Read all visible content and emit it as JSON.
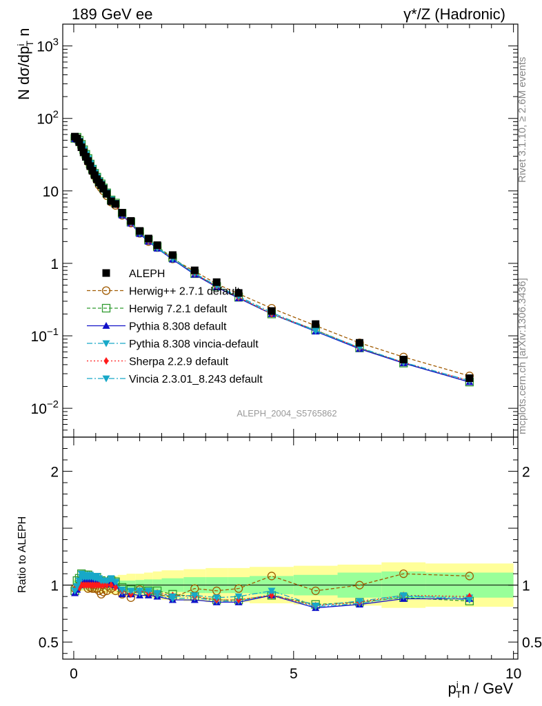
{
  "header": {
    "left_title": "189 GeV ee",
    "right_title": "γ*/Z (Hadronic)"
  },
  "side_labels": {
    "rivet": "Rivet 3.1.10, ≥ 2.6M events",
    "mcplots": "mcplots.cern.ch [arXiv:1306.3436]"
  },
  "watermark": "ALEPH_2004_S5765862",
  "chart_data": [
    {
      "type": "line",
      "panel": "main",
      "ylabel": "N dσ/dp_T^i n",
      "yscale": "log",
      "ylim": [
        0.004,
        2000
      ],
      "xlim": [
        -0.25,
        10.1
      ],
      "y_tick_labels": [
        "10^-2",
        "10^-1",
        "1",
        "10",
        "10^2",
        "10^3"
      ],
      "x": [
        0.025,
        0.075,
        0.125,
        0.175,
        0.225,
        0.275,
        0.325,
        0.375,
        0.425,
        0.475,
        0.525,
        0.575,
        0.625,
        0.675,
        0.75,
        0.85,
        0.95,
        1.1,
        1.3,
        1.5,
        1.7,
        1.9,
        2.25,
        2.75,
        3.25,
        3.75,
        4.5,
        5.5,
        6.5,
        7.5,
        9.0
      ],
      "series": [
        {
          "name": "ALEPH",
          "color": "#000000",
          "marker": "square-filled",
          "values": [
            56,
            53,
            47,
            40,
            34,
            29.5,
            25.8,
            22,
            19,
            16.5,
            14.5,
            13,
            12,
            10.7,
            9.1,
            7.2,
            6.6,
            5.0,
            3.85,
            2.8,
            2.2,
            1.78,
            1.3,
            0.8,
            0.55,
            0.39,
            0.22,
            0.145,
            0.08,
            0.047,
            0.026
          ]
        },
        {
          "name": "Herwig++ 2.7.1 default",
          "color": "#a05a00",
          "marker": "circle-open",
          "dash": "5,3",
          "values": [
            54,
            51,
            47,
            41,
            35,
            30,
            25,
            21.5,
            18.5,
            16,
            14,
            12,
            11,
            10,
            8.6,
            7.0,
            6.3,
            4.6,
            3.6,
            2.6,
            2.0,
            1.65,
            1.15,
            0.78,
            0.52,
            0.38,
            0.24,
            0.138,
            0.08,
            0.051,
            0.028
          ]
        },
        {
          "name": "Herwig 7.2.1 default",
          "color": "#2e9a2e",
          "marker": "square-open",
          "dash": "5,3",
          "values": [
            53,
            55,
            50,
            44,
            37,
            32,
            28,
            23.5,
            20,
            17.5,
            15.5,
            13.5,
            12.5,
            11,
            9.4,
            7.5,
            6.8,
            4.9,
            3.7,
            2.7,
            2.1,
            1.7,
            1.2,
            0.72,
            0.48,
            0.34,
            0.2,
            0.12,
            0.068,
            0.042,
            0.023
          ]
        },
        {
          "name": "Pythia 8.308 default",
          "color": "#1010c8",
          "marker": "triangle-up",
          "dash": "",
          "values": [
            52,
            51,
            47,
            42,
            36,
            31,
            27,
            23,
            20,
            17.3,
            15.2,
            13.5,
            12.2,
            10.8,
            9.2,
            7.4,
            6.6,
            4.6,
            3.55,
            2.55,
            2.0,
            1.6,
            1.13,
            0.7,
            0.47,
            0.33,
            0.2,
            0.115,
            0.066,
            0.042,
            0.023
          ]
        },
        {
          "name": "Pythia 8.308 vincia-default",
          "color": "#17a8c8",
          "marker": "triangle-down",
          "dash": "8,3,2,3",
          "values": [
            53,
            52,
            48,
            43,
            36.5,
            31.5,
            27.5,
            23.5,
            20.3,
            17.5,
            15.4,
            13.6,
            12.3,
            10.9,
            9.3,
            7.5,
            6.7,
            4.7,
            3.6,
            2.6,
            2.05,
            1.62,
            1.15,
            0.72,
            0.48,
            0.34,
            0.2,
            0.117,
            0.068,
            0.043,
            0.024
          ]
        },
        {
          "name": "Sherpa 2.2.9 default",
          "color": "#ff1a1a",
          "marker": "diamond",
          "dash": "2,3",
          "values": [
            54,
            52,
            46,
            40,
            34,
            29.5,
            25.8,
            22,
            19,
            16.5,
            14.5,
            13,
            12,
            10.7,
            9.1,
            7.2,
            6.5,
            4.75,
            3.55,
            2.65,
            2.05,
            1.65,
            1.18,
            0.72,
            0.48,
            0.34,
            0.2,
            0.12,
            0.068,
            0.043,
            0.024
          ]
        },
        {
          "name": "Vincia 2.3.01_8.243 default",
          "color": "#17a8c8",
          "marker": "triangle-down",
          "dash": "8,3,2,3",
          "values": [
            53,
            53,
            49,
            44,
            37,
            32,
            28,
            24,
            20.6,
            17.8,
            15.6,
            13.8,
            12.5,
            11.1,
            9.5,
            7.6,
            6.8,
            4.8,
            3.65,
            2.65,
            2.1,
            1.65,
            1.17,
            0.73,
            0.49,
            0.35,
            0.21,
            0.118,
            0.069,
            0.043,
            0.024
          ]
        }
      ]
    },
    {
      "type": "line",
      "panel": "ratio",
      "ylabel": "Ratio to ALEPH",
      "xlabel": "p_T^i n / GeV",
      "ylim": [
        0.35,
        2.3
      ],
      "xlim": [
        -0.25,
        10.1
      ],
      "y_tick_labels": [
        "0.5",
        "1",
        "2"
      ],
      "x_tick_labels": [
        "0",
        "5",
        "10"
      ],
      "x_edges": [
        0,
        0.05,
        0.1,
        0.15,
        0.2,
        0.25,
        0.3,
        0.35,
        0.4,
        0.45,
        0.5,
        0.55,
        0.6,
        0.65,
        0.7,
        0.8,
        0.9,
        1.0,
        1.2,
        1.4,
        1.6,
        1.8,
        2.0,
        2.5,
        3.0,
        3.5,
        4.0,
        5.0,
        6.0,
        7.0,
        8.0,
        10.0
      ],
      "band_stat_halfwidth": [
        0.04,
        0.04,
        0.04,
        0.04,
        0.04,
        0.04,
        0.04,
        0.04,
        0.04,
        0.04,
        0.04,
        0.04,
        0.04,
        0.04,
        0.04,
        0.04,
        0.04,
        0.04,
        0.04,
        0.045,
        0.05,
        0.05,
        0.06,
        0.07,
        0.07,
        0.07,
        0.08,
        0.09,
        0.11,
        0.12,
        0.11
      ],
      "band_total_halfwidth": [
        0.05,
        0.05,
        0.05,
        0.05,
        0.05,
        0.05,
        0.06,
        0.06,
        0.06,
        0.06,
        0.06,
        0.06,
        0.07,
        0.07,
        0.07,
        0.08,
        0.08,
        0.09,
        0.1,
        0.1,
        0.11,
        0.12,
        0.13,
        0.14,
        0.15,
        0.15,
        0.16,
        0.17,
        0.18,
        0.2,
        0.19
      ],
      "series": [
        {
          "name": "Herwig++ 2.7.1 default",
          "values": [
            0.97,
            0.97,
            1.0,
            1.02,
            1.03,
            1.02,
            0.97,
            0.98,
            0.97,
            0.97,
            0.97,
            0.95,
            0.92,
            0.94,
            0.95,
            0.97,
            0.95,
            0.92,
            0.89,
            0.96,
            0.93,
            0.92,
            0.89,
            0.97,
            0.95,
            0.97,
            1.08,
            0.95,
            1.0,
            1.1,
            1.08
          ]
        },
        {
          "name": "Herwig 7.2.1 default",
          "values": [
            0.95,
            1.04,
            1.06,
            1.1,
            1.09,
            1.09,
            1.09,
            1.07,
            1.05,
            1.06,
            1.07,
            1.04,
            1.04,
            1.03,
            1.03,
            1.04,
            1.03,
            0.98,
            0.96,
            0.97,
            0.95,
            0.95,
            0.92,
            0.9,
            0.87,
            0.87,
            0.91,
            0.83,
            0.85,
            0.89,
            0.86
          ]
        },
        {
          "name": "Pythia 8.308 default",
          "values": [
            0.93,
            0.96,
            1.0,
            1.05,
            1.06,
            1.05,
            1.05,
            1.05,
            1.05,
            1.05,
            1.05,
            1.04,
            1.02,
            1.01,
            1.01,
            1.03,
            1.0,
            0.92,
            0.92,
            0.91,
            0.91,
            0.9,
            0.87,
            0.87,
            0.85,
            0.85,
            0.91,
            0.8,
            0.83,
            0.88,
            0.88
          ]
        },
        {
          "name": "Pythia 8.308 vincia-default",
          "values": [
            0.95,
            0.98,
            1.02,
            1.07,
            1.07,
            1.07,
            1.07,
            1.07,
            1.07,
            1.06,
            1.06,
            1.05,
            1.03,
            1.02,
            1.02,
            1.04,
            1.02,
            0.94,
            0.94,
            0.93,
            0.93,
            0.91,
            0.88,
            0.89,
            0.86,
            0.86,
            0.92,
            0.81,
            0.84,
            0.9,
            0.89
          ]
        },
        {
          "name": "Sherpa 2.2.9 default",
          "values": [
            0.96,
            0.99,
            0.98,
            1.0,
            1.0,
            1.0,
            1.0,
            1.0,
            1.0,
            1.0,
            1.0,
            1.0,
            1.0,
            1.0,
            1.0,
            1.0,
            0.98,
            0.95,
            0.92,
            0.95,
            0.93,
            0.93,
            0.91,
            0.9,
            0.87,
            0.87,
            0.91,
            0.82,
            0.85,
            0.91,
            0.9
          ]
        },
        {
          "name": "Vincia 2.3.01_8.243 default",
          "values": [
            0.95,
            0.99,
            1.04,
            1.1,
            1.09,
            1.08,
            1.08,
            1.09,
            1.08,
            1.08,
            1.08,
            1.06,
            1.04,
            1.04,
            1.04,
            1.06,
            1.03,
            0.96,
            0.95,
            0.95,
            0.95,
            0.93,
            0.9,
            0.91,
            0.89,
            0.9,
            0.95,
            0.82,
            0.86,
            0.91,
            0.87
          ]
        }
      ]
    }
  ]
}
